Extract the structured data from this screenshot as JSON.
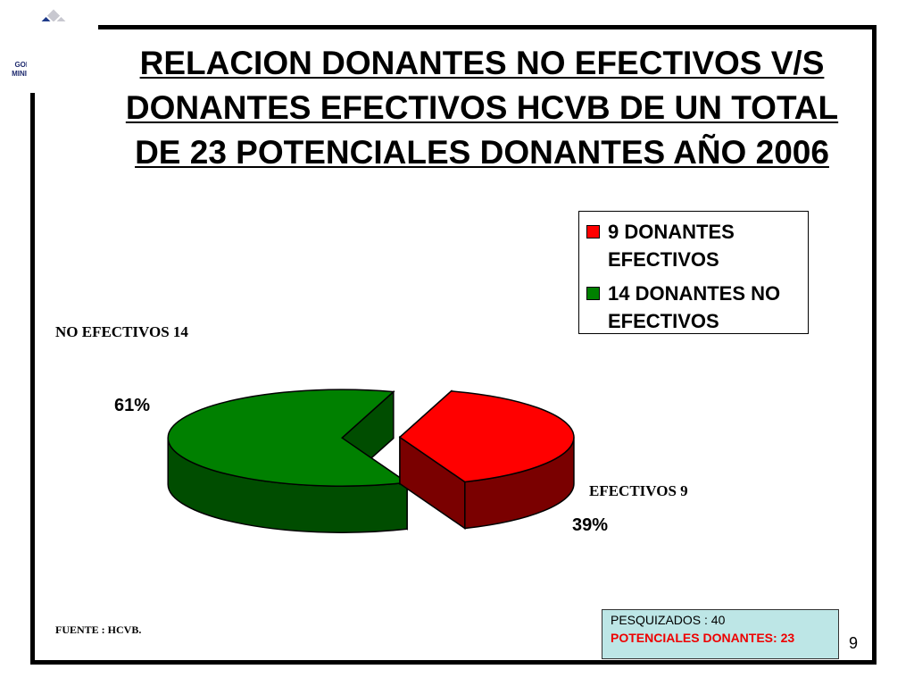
{
  "logo": {
    "line1": "GOBIERNO DE CHILE",
    "line2": "MINISTERIO DE SALUD"
  },
  "slide": {
    "title": "RELACION DONANTES NO EFECTIVOS V/S DONANTES EFECTIVOS HCVB DE UN TOTAL DE 23 POTENCIALES DONANTES AÑO 2006",
    "title_lines": [
      "RELACION DONANTES NO EFECTIVOS V/S",
      "DONANTES EFECTIVOS HCVB DE UN TOTAL",
      "DE 23 POTENCIALES DONANTES AÑO 2006"
    ],
    "label_no_efectivos": "NO EFECTIVOS 14",
    "label_efectivos": "EFECTIVOS  9",
    "source": "FUENTE : HCVB.",
    "info": {
      "line1": "PESQUIZADOS : 40",
      "line2": "POTENCIALES DONANTES: 23"
    },
    "page_number": "9"
  },
  "chart_data": {
    "type": "pie",
    "title": "RELACION DONANTES NO EFECTIVOS V/S DONANTES EFECTIVOS HCVB DE UN TOTAL DE 23 POTENCIALES DONANTES AÑO 2006",
    "categories": [
      "9 DONANTES EFECTIVOS",
      "14 DONANTES NO EFECTIVOS"
    ],
    "values": [
      9,
      14
    ],
    "percent_labels": [
      "39%",
      "61%"
    ],
    "colors": [
      "#ff0000",
      "#008000"
    ],
    "side_colors": [
      "#7a0000",
      "#004d00"
    ],
    "legend": {
      "placement": "top-right",
      "entries": [
        {
          "line1": "9 DONANTES",
          "line2": "EFECTIVOS"
        },
        {
          "line1": "14 DONANTES NO",
          "line2": "EFECTIVOS"
        }
      ]
    },
    "style": "3d-exploded"
  }
}
